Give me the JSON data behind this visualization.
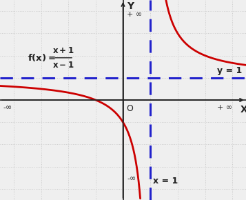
{
  "xlabel": "X",
  "ylabel": "Y",
  "origin_label": "O",
  "asymptote_x": 1,
  "asymptote_y": 1,
  "asymptote_x_label": "x = 1",
  "asymptote_y_label": "y = 1",
  "x_left_label": "-∞",
  "x_right_label": "+ ∞",
  "y_top_label": "+ ∞",
  "y_bottom_label": "-∞",
  "curve_color": "#cc0000",
  "asymptote_color": "#2222cc",
  "axis_color": "#222222",
  "grid_color": "#cccccc",
  "bg_color": "#efefef",
  "xlim": [
    -4.5,
    4.5
  ],
  "ylim": [
    -4.5,
    4.5
  ],
  "figsize": [
    3.57,
    2.9
  ],
  "dpi": 100
}
